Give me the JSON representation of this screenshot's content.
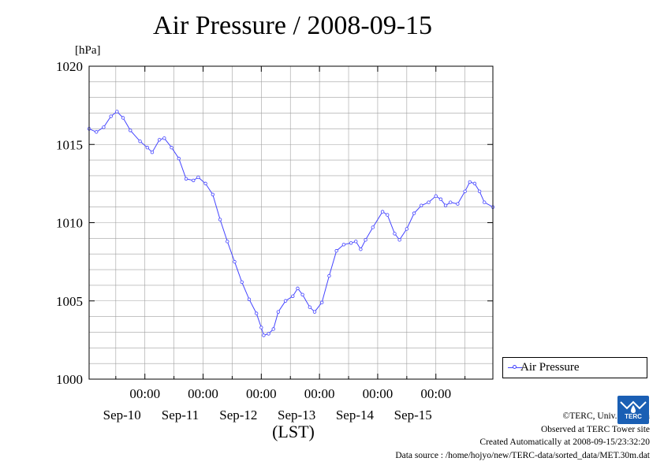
{
  "title": "Air Pressure / 2008-09-15",
  "unit": "[hPa]",
  "xlabel": "(LST)",
  "legend_label": "Air Pressure",
  "credits": [
    "©TERC, Univ. Tsukuba",
    "Observed at TERC Tower site",
    "Created Automatically at 2008-09-15/23:32:20",
    "Data source : /home/hojyo/new/TERC-data/sorted_data/MET.30m.dat"
  ],
  "logo_text": "TERC",
  "colors": {
    "series": "#4444ff",
    "grid": "#a0a0a0",
    "logo": "#1a5fb4"
  },
  "chart_data": {
    "type": "line",
    "title": "Air Pressure / 2008-09-15",
    "ylabel": "[hPa]",
    "xlabel": "(LST)",
    "ylim": [
      1000,
      1020
    ],
    "yticks": [
      1000,
      1005,
      1010,
      1015,
      1020
    ],
    "xlim": [
      "2008-09-09 01:00",
      "2008-09-15 23:30"
    ],
    "x_major_ticks": [
      {
        "time": "2008-09-10 00:00",
        "label_time": "00:00",
        "label_date": "Sep-10"
      },
      {
        "time": "2008-09-11 00:00",
        "label_time": "00:00",
        "label_date": "Sep-11"
      },
      {
        "time": "2008-09-12 00:00",
        "label_time": "00:00",
        "label_date": "Sep-12"
      },
      {
        "time": "2008-09-13 00:00",
        "label_time": "00:00",
        "label_date": "Sep-13"
      },
      {
        "time": "2008-09-14 00:00",
        "label_time": "00:00",
        "label_date": "Sep-14"
      },
      {
        "time": "2008-09-15 00:00",
        "label_time": "00:00",
        "label_date": "Sep-15"
      }
    ],
    "grid": true,
    "legend_position": "right",
    "series": [
      {
        "name": "Air Pressure",
        "marker": "circle",
        "points": [
          [
            "2008-09-09 01:00",
            1016.0
          ],
          [
            "2008-09-09 04:00",
            1015.8
          ],
          [
            "2008-09-09 07:00",
            1016.1
          ],
          [
            "2008-09-09 10:00",
            1016.8
          ],
          [
            "2008-09-09 12:30",
            1017.1
          ],
          [
            "2008-09-09 15:00",
            1016.7
          ],
          [
            "2008-09-09 18:00",
            1015.9
          ],
          [
            "2008-09-09 22:00",
            1015.2
          ],
          [
            "2008-09-10 01:00",
            1014.8
          ],
          [
            "2008-09-10 03:00",
            1014.5
          ],
          [
            "2008-09-10 06:00",
            1015.3
          ],
          [
            "2008-09-10 08:00",
            1015.4
          ],
          [
            "2008-09-10 11:00",
            1014.8
          ],
          [
            "2008-09-10 14:00",
            1014.1
          ],
          [
            "2008-09-10 17:00",
            1012.8
          ],
          [
            "2008-09-10 20:00",
            1012.7
          ],
          [
            "2008-09-10 22:00",
            1012.9
          ],
          [
            "2008-09-11 01:00",
            1012.5
          ],
          [
            "2008-09-11 04:00",
            1011.8
          ],
          [
            "2008-09-11 07:00",
            1010.2
          ],
          [
            "2008-09-11 10:00",
            1008.8
          ],
          [
            "2008-09-11 13:00",
            1007.5
          ],
          [
            "2008-09-11 16:00",
            1006.2
          ],
          [
            "2008-09-11 19:00",
            1005.1
          ],
          [
            "2008-09-11 22:00",
            1004.2
          ],
          [
            "2008-09-12 00:00",
            1003.3
          ],
          [
            "2008-09-12 01:00",
            1002.8
          ],
          [
            "2008-09-12 03:00",
            1002.9
          ],
          [
            "2008-09-12 05:00",
            1003.2
          ],
          [
            "2008-09-12 07:00",
            1004.3
          ],
          [
            "2008-09-12 10:00",
            1005.0
          ],
          [
            "2008-09-12 13:00",
            1005.3
          ],
          [
            "2008-09-12 15:00",
            1005.8
          ],
          [
            "2008-09-12 17:00",
            1005.4
          ],
          [
            "2008-09-12 20:00",
            1004.6
          ],
          [
            "2008-09-12 22:00",
            1004.3
          ],
          [
            "2008-09-13 01:00",
            1004.9
          ],
          [
            "2008-09-13 04:00",
            1006.6
          ],
          [
            "2008-09-13 07:00",
            1008.2
          ],
          [
            "2008-09-13 10:00",
            1008.6
          ],
          [
            "2008-09-13 13:00",
            1008.7
          ],
          [
            "2008-09-13 15:00",
            1008.8
          ],
          [
            "2008-09-13 17:00",
            1008.3
          ],
          [
            "2008-09-13 19:00",
            1008.9
          ],
          [
            "2008-09-13 22:00",
            1009.7
          ],
          [
            "2008-09-14 02:00",
            1010.7
          ],
          [
            "2008-09-14 04:00",
            1010.5
          ],
          [
            "2008-09-14 07:00",
            1009.3
          ],
          [
            "2008-09-14 09:00",
            1008.9
          ],
          [
            "2008-09-14 12:00",
            1009.6
          ],
          [
            "2008-09-14 15:00",
            1010.6
          ],
          [
            "2008-09-14 18:00",
            1011.1
          ],
          [
            "2008-09-14 21:00",
            1011.3
          ],
          [
            "2008-09-15 00:00",
            1011.7
          ],
          [
            "2008-09-15 02:00",
            1011.5
          ],
          [
            "2008-09-15 04:00",
            1011.1
          ],
          [
            "2008-09-15 06:00",
            1011.3
          ],
          [
            "2008-09-15 09:00",
            1011.2
          ],
          [
            "2008-09-15 12:00",
            1012.0
          ],
          [
            "2008-09-15 14:00",
            1012.6
          ],
          [
            "2008-09-15 16:00",
            1012.5
          ],
          [
            "2008-09-15 18:00",
            1012.0
          ],
          [
            "2008-09-15 20:00",
            1011.3
          ],
          [
            "2008-09-15 23:30",
            1011.0
          ]
        ]
      }
    ]
  }
}
